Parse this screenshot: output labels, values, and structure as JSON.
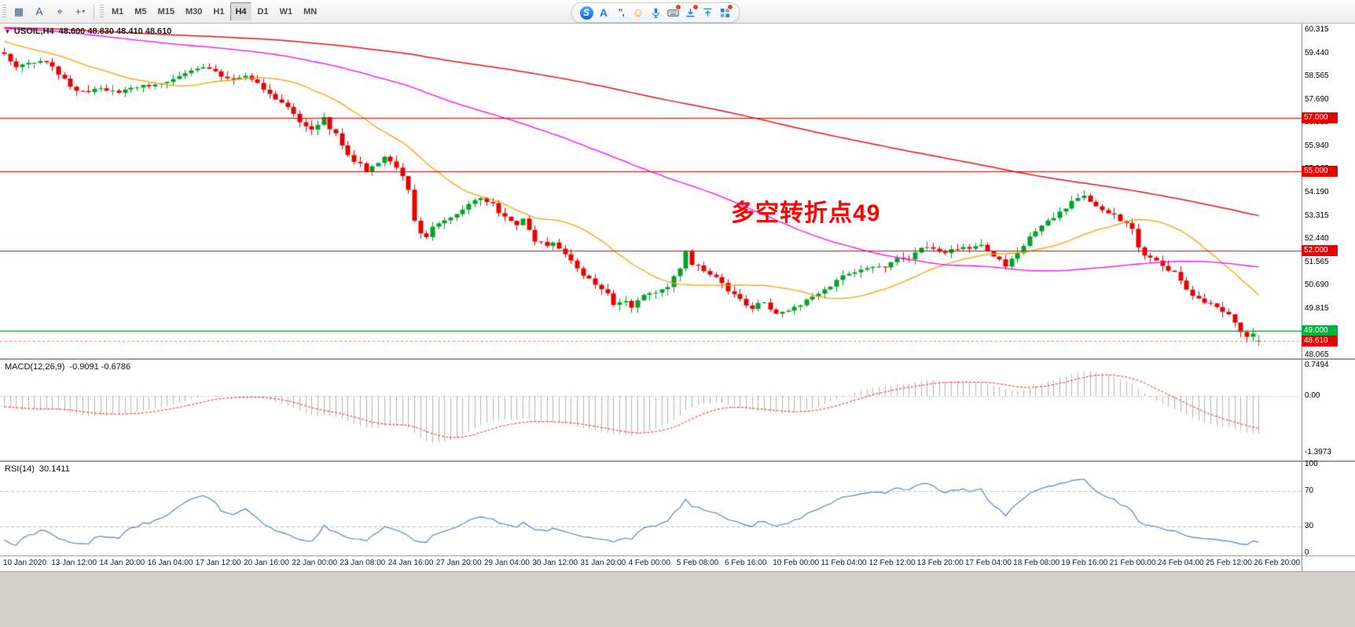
{
  "toolbar": {
    "left_tools": [
      {
        "name": "chart-grid",
        "glyph": "▦"
      },
      {
        "name": "text-label",
        "glyph": "A"
      },
      {
        "name": "cursor",
        "glyph": "⌖"
      },
      {
        "name": "crosshair",
        "glyph": "+",
        "dropdown": "▾"
      }
    ],
    "timeframes": [
      "M1",
      "M5",
      "M15",
      "M30",
      "H1",
      "H4",
      "D1",
      "W1",
      "MN"
    ],
    "active_timeframe": "H4",
    "ime": {
      "logo": "S",
      "input_mode": "A",
      "punctuation": "”,",
      "emoji": "☺"
    }
  },
  "chart": {
    "title": "USOIL,H4",
    "ohlc_text": "48.600 48.830 48.410 48.610",
    "collapse_icon": "▼",
    "quote": {
      "open": 48.6,
      "high": 48.83,
      "low": 48.41,
      "close": 48.61
    },
    "annotation": {
      "text": "多空转折点49",
      "color": "#ff0000"
    },
    "price_axis": {
      "top_price": 60.55,
      "bottom_price": 47.95,
      "ticks": [
        "60.315",
        "59.440",
        "58.565",
        "57.690",
        "56.815",
        "55.940",
        "55.065",
        "54.190",
        "53.315",
        "52.440",
        "51.565",
        "50.690",
        "49.815",
        "48.940",
        "48.065"
      ]
    },
    "levels": [
      {
        "label": "57.000",
        "value": 57.0,
        "color": "#e80000"
      },
      {
        "label": "55.000",
        "value": 55.0,
        "color": "#e80000"
      },
      {
        "label": "52.000",
        "value": 52.0,
        "color": "#e80000"
      },
      {
        "label": "49.000",
        "value": 49.0,
        "color": "#00b33c"
      }
    ],
    "current_price": {
      "label": "48.610",
      "value": 48.61,
      "color": "#e80000",
      "line_color": "#ff8080"
    },
    "candles": {
      "up_color": "#00a327",
      "down_color": "#ea0000",
      "seed": 42,
      "pre_bars": 200,
      "visible_bars": 209,
      "noise": 0.18,
      "wick": 0.22,
      "waypoints": [
        [
          -200,
          60.2
        ],
        [
          -150,
          60.9
        ],
        [
          -100,
          59.9
        ],
        [
          -60,
          60.5
        ],
        [
          -30,
          60.9
        ],
        [
          -15,
          60.2
        ],
        [
          -5,
          59.5
        ],
        [
          0,
          59.35
        ],
        [
          2,
          58.85
        ],
        [
          4,
          59.05
        ],
        [
          6,
          59.15
        ],
        [
          8,
          58.9
        ],
        [
          11,
          58.15
        ],
        [
          13,
          57.95
        ],
        [
          16,
          58.2
        ],
        [
          19,
          57.9
        ],
        [
          22,
          58.15
        ],
        [
          25,
          58.3
        ],
        [
          28,
          58.5
        ],
        [
          31,
          58.75
        ],
        [
          34,
          58.9
        ],
        [
          36,
          58.55
        ],
        [
          38,
          58.45
        ],
        [
          40,
          58.6
        ],
        [
          42,
          58.35
        ],
        [
          44,
          57.9
        ],
        [
          47,
          57.4
        ],
        [
          49,
          56.85
        ],
        [
          51,
          56.65
        ],
        [
          53,
          56.95
        ],
        [
          55,
          56.35
        ],
        [
          57,
          55.6
        ],
        [
          60,
          55.05
        ],
        [
          63,
          55.5
        ],
        [
          65,
          55.2
        ],
        [
          67,
          54.25
        ],
        [
          68,
          53.1
        ],
        [
          69,
          52.6
        ],
        [
          70,
          52.5
        ],
        [
          71,
          52.85
        ],
        [
          73,
          53.2
        ],
        [
          75,
          53.45
        ],
        [
          77,
          53.8
        ],
        [
          79,
          53.95
        ],
        [
          81,
          53.7
        ],
        [
          83,
          53.3
        ],
        [
          85,
          53.0
        ],
        [
          86,
          53.15
        ],
        [
          88,
          52.4
        ],
        [
          90,
          52.1
        ],
        [
          91,
          52.35
        ],
        [
          93,
          51.8
        ],
        [
          95,
          51.3
        ],
        [
          96,
          51.05
        ],
        [
          98,
          50.75
        ],
        [
          100,
          50.35
        ],
        [
          101,
          49.95
        ],
        [
          103,
          50.1
        ],
        [
          104,
          49.85
        ],
        [
          106,
          50.25
        ],
        [
          108,
          50.45
        ],
        [
          110,
          50.6
        ],
        [
          112,
          51.35
        ],
        [
          113,
          51.9
        ],
        [
          114,
          51.5
        ],
        [
          116,
          51.25
        ],
        [
          118,
          51.0
        ],
        [
          120,
          50.45
        ],
        [
          122,
          50.15
        ],
        [
          124,
          49.85
        ],
        [
          126,
          50.05
        ],
        [
          128,
          49.6
        ],
        [
          130,
          49.7
        ],
        [
          132,
          50.0
        ],
        [
          134,
          50.2
        ],
        [
          136,
          50.55
        ],
        [
          138,
          50.9
        ],
        [
          140,
          51.1
        ],
        [
          142,
          51.3
        ],
        [
          144,
          51.35
        ],
        [
          146,
          51.45
        ],
        [
          148,
          51.8
        ],
        [
          150,
          51.7
        ],
        [
          152,
          52.05
        ],
        [
          154,
          52.15
        ],
        [
          156,
          51.95
        ],
        [
          158,
          52.1
        ],
        [
          160,
          52.05
        ],
        [
          162,
          52.15
        ],
        [
          164,
          51.85
        ],
        [
          166,
          51.45
        ],
        [
          168,
          51.95
        ],
        [
          170,
          52.5
        ],
        [
          172,
          52.95
        ],
        [
          174,
          53.3
        ],
        [
          176,
          53.55
        ],
        [
          178,
          54.05
        ],
        [
          179,
          54.15
        ],
        [
          181,
          53.7
        ],
        [
          183,
          53.45
        ],
        [
          185,
          53.1
        ],
        [
          187,
          52.85
        ],
        [
          188,
          52.1
        ],
        [
          190,
          51.7
        ],
        [
          192,
          51.45
        ],
        [
          194,
          51.15
        ],
        [
          196,
          50.6
        ],
        [
          198,
          50.15
        ],
        [
          200,
          49.95
        ],
        [
          202,
          49.7
        ],
        [
          204,
          49.35
        ],
        [
          205,
          49.0
        ],
        [
          206,
          48.75
        ],
        [
          207,
          48.85
        ],
        [
          208,
          48.61
        ]
      ]
    },
    "moving_averages": [
      {
        "period": 21,
        "color": "#ff9d00",
        "width": 1.3
      },
      {
        "period": 89,
        "color": "#ff00ff",
        "width": 1.3
      },
      {
        "period": 200,
        "color": "#ee1111",
        "width": 1.5
      }
    ]
  },
  "macd": {
    "label": "MACD(12,26,9)",
    "values": "-0.9091 -0.6786",
    "fast": 12,
    "slow": 26,
    "signal": 9,
    "axis": [
      "0.7494",
      "0.00",
      "-1.3973"
    ],
    "range": {
      "top": 0.88,
      "bottom": -1.58
    },
    "hist_color": "#b5b5b5",
    "signal_color": "#ee2222",
    "zero_color": "#aaaaaa"
  },
  "rsi": {
    "label": "RSI(14)",
    "value": "30.1411",
    "period": 14,
    "axis": [
      "100",
      "70",
      "30",
      "0"
    ],
    "levels": [
      70,
      30
    ],
    "line_color": "#4a7ebb",
    "level_color": "#c0c0c0"
  },
  "time_axis": {
    "labels": [
      "10 Jan 2020",
      "13 Jan 12:00",
      "14 Jan 20:00",
      "16 Jan 04:00",
      "17 Jan 12:00",
      "20 Jan 16:00",
      "22 Jan 00:00",
      "23 Jan 08:00",
      "24 Jan 16:00",
      "27 Jan 20:00",
      "29 Jan 04:00",
      "30 Jan 12:00",
      "31 Jan 20:00",
      "4 Feb 00:00",
      "5 Feb 08:00",
      "6 Feb 16:00",
      "10 Feb 00:00",
      "11 Feb 04:00",
      "12 Feb 12:00",
      "13 Feb 20:00",
      "17 Feb 04:00",
      "18 Feb 08:00",
      "19 Feb 16:00",
      "21 Feb 00:00",
      "24 Feb 04:00",
      "25 Feb 12:00",
      "26 Feb 20:00"
    ]
  },
  "chart_data": {
    "type": "candlestick",
    "symbol": "USOIL",
    "timeframe": "H4",
    "last_bar": {
      "open": 48.6,
      "high": 48.83,
      "low": 48.41,
      "close": 48.61
    },
    "horizontal_lines": [
      57.0,
      55.0,
      52.0,
      49.0
    ],
    "price_range_visible": [
      48.065,
      60.315
    ],
    "indicators": [
      "MA(21) orange",
      "MA(89) magenta",
      "MA(200) red",
      "MACD(12,26,9) = -0.9091 / -0.6786",
      "RSI(14) = 30.1411"
    ]
  }
}
